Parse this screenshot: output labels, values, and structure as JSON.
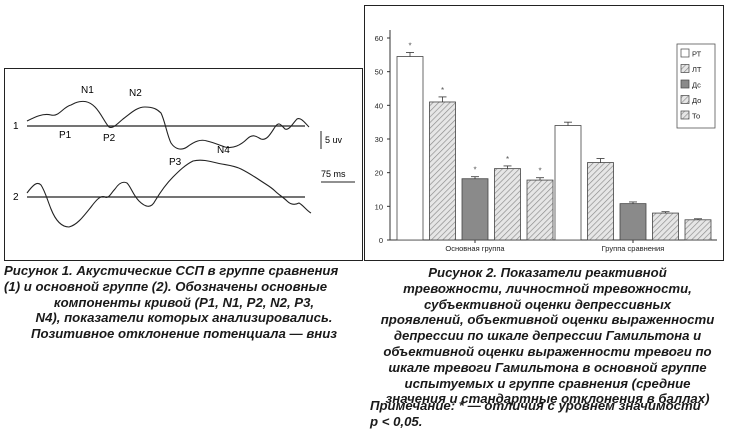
{
  "left_figure": {
    "trace_labels": [
      "1",
      "2"
    ],
    "component_labels": [
      "N1",
      "N2",
      "P1",
      "P2",
      "P3",
      "N4"
    ],
    "scale_voltage": "5 uv",
    "scale_time": "75 ms"
  },
  "left_caption": [
    "Рисунок 1. Акустические ССП в группе сравнения",
    "(1) и основной группе (2). Обозначены основные",
    "компоненты кривой (P1, N1, P2, N2, P3,",
    "N4), показатели которых анализировались.",
    "Позитивное отклонение потенциала — вниз"
  ],
  "right_caption": [
    "Рисунок 2. Показатели реактивной",
    "тревожности, личностной тревожности,",
    "субъективной оценки депрессивных",
    "проявлений, объективной оценки выраженности",
    "депрессии по шкале депрессии Гамильтона и",
    "объективной оценки выраженности тревоги по",
    "шкале тревоги Гамильтона в основной группе",
    "испытуемых и группе сравнения (средние",
    "значения и стандартные отклонения в баллах)"
  ],
  "note": [
    "Примечание: * — отличия с уровнем значимости",
    "p < 0,05."
  ],
  "chart_data": {
    "type": "bar",
    "categories": [
      "Основная группа",
      "Группа сравнения"
    ],
    "series": [
      {
        "name": "РТ",
        "values": [
          54.5,
          34
        ],
        "errors": [
          1.2,
          1.0
        ],
        "fill": "#ffffff",
        "significant": [
          true,
          false
        ]
      },
      {
        "name": "ЛТ",
        "values": [
          41,
          23
        ],
        "errors": [
          1.5,
          1.2
        ],
        "fill": "hatch",
        "significant": [
          true,
          false
        ]
      },
      {
        "name": "Дс",
        "values": [
          18.2,
          10.8
        ],
        "errors": [
          0.6,
          0.5
        ],
        "fill": "#8a8a8a",
        "significant": [
          true,
          false
        ]
      },
      {
        "name": "До",
        "values": [
          21.2,
          8
        ],
        "errors": [
          0.8,
          0.4
        ],
        "fill": "hatch",
        "significant": [
          true,
          false
        ]
      },
      {
        "name": "То",
        "values": [
          17.8,
          6
        ],
        "errors": [
          0.7,
          0.3
        ],
        "fill": "hatch",
        "significant": [
          true,
          false
        ]
      }
    ],
    "y_ticks": [
      "0",
      "10",
      "20",
      "30",
      "40",
      "50",
      "60"
    ],
    "ylim": [
      0,
      60
    ],
    "significance_mark": "*",
    "legend_position": "top-right",
    "grid": false
  }
}
